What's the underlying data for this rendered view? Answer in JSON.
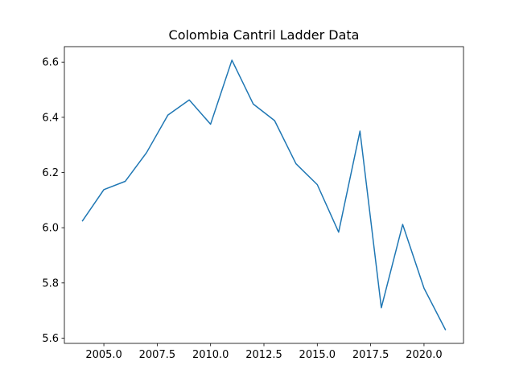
{
  "chart_data": {
    "type": "line",
    "title": "Colombia Cantril Ladder Data",
    "xlabel": "",
    "ylabel": "",
    "x": [
      2004,
      2005,
      2006,
      2007,
      2008,
      2009,
      2010,
      2011,
      2012,
      2013,
      2014,
      2015,
      2016,
      2017,
      2018,
      2019,
      2020,
      2021
    ],
    "series": [
      {
        "values": [
          6.025,
          6.138,
          6.168,
          6.272,
          6.408,
          6.463,
          6.375,
          6.607,
          6.448,
          6.388,
          6.232,
          6.156,
          5.984,
          6.35,
          5.71,
          6.012,
          5.781,
          5.631
        ]
      }
    ],
    "xlim": [
      2003.15,
      2021.85
    ],
    "ylim": [
      5.581,
      6.656
    ],
    "xticks": [
      "2005.0",
      "2007.5",
      "2010.0",
      "2012.5",
      "2015.0",
      "2017.5",
      "2020.0"
    ],
    "xtick_values": [
      2005,
      2007.5,
      2010,
      2012.5,
      2015,
      2017.5,
      2020
    ],
    "yticks": [
      "5.6",
      "5.8",
      "6.0",
      "6.2",
      "6.4",
      "6.6"
    ],
    "ytick_values": [
      5.6,
      5.8,
      6.0,
      6.2,
      6.4,
      6.6
    ],
    "grid": false,
    "line_color": "#1f77b4"
  }
}
